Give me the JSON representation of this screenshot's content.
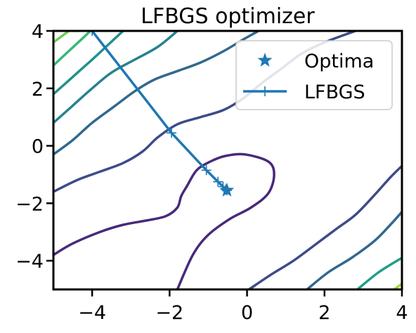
{
  "chart_data": {
    "type": "line",
    "title": "LFBGS optimizer",
    "xlabel": "",
    "ylabel": "",
    "xlim": [
      -5,
      4
    ],
    "ylim": [
      -5,
      4
    ],
    "xticks": [
      -4,
      -2,
      0,
      2,
      4
    ],
    "yticks": [
      -4,
      -2,
      0,
      2,
      4
    ],
    "xtick_labels": [
      "−4",
      "−2",
      "0",
      "2",
      "4"
    ],
    "ytick_labels": [
      "−4",
      "−2",
      "0",
      "2",
      "4"
    ],
    "grid": false,
    "legend": {
      "placement": "top-right",
      "entries": [
        {
          "label": "Optima",
          "marker": "star",
          "color": "#1f77b4"
        },
        {
          "label": "LFBGS",
          "marker": "plus-line",
          "color": "#1f77b4"
        }
      ]
    },
    "series": [
      {
        "name": "LFBGS",
        "color": "#1f77b4",
        "points": [
          [
            -4.0,
            4.0
          ],
          [
            -1.95,
            0.45
          ],
          [
            -1.05,
            -0.85
          ],
          [
            -0.75,
            -1.25
          ],
          [
            -0.62,
            -1.42
          ],
          [
            -0.55,
            -1.52
          ],
          [
            -0.52,
            -1.55
          ]
        ]
      }
    ],
    "optima": {
      "name": "Optima",
      "x": -0.52,
      "y": -1.55,
      "marker": "star",
      "color": "#1f77b4"
    },
    "contours": [
      {
        "color": "#472a7a",
        "points": [
          [
            -5.0,
            -3.8
          ],
          [
            -4.5,
            -3.4
          ],
          [
            -3.8,
            -3.0
          ],
          [
            -3.2,
            -2.75
          ],
          [
            -2.6,
            -2.6
          ],
          [
            -2.1,
            -2.45
          ],
          [
            -1.8,
            -2.15
          ],
          [
            -1.7,
            -1.75
          ],
          [
            -1.55,
            -1.4
          ],
          [
            -1.3,
            -0.85
          ],
          [
            -0.95,
            -0.55
          ],
          [
            -0.55,
            -0.35
          ],
          [
            -0.05,
            -0.3
          ],
          [
            0.55,
            -0.55
          ],
          [
            0.7,
            -1.0
          ],
          [
            0.55,
            -1.65
          ],
          [
            0.1,
            -2.15
          ],
          [
            -0.45,
            -2.55
          ],
          [
            -1.0,
            -3.1
          ],
          [
            -1.4,
            -3.8
          ],
          [
            -1.8,
            -5.0
          ]
        ]
      },
      {
        "color": "#3e4a89",
        "points": [
          [
            -5.0,
            -1.6
          ],
          [
            -4.4,
            -1.2
          ],
          [
            -3.8,
            -0.9
          ],
          [
            -3.2,
            -0.6
          ],
          [
            -2.7,
            -0.2
          ],
          [
            -2.3,
            0.3
          ],
          [
            -1.8,
            0.75
          ],
          [
            -1.2,
            1.0
          ],
          [
            -0.6,
            1.25
          ],
          [
            -0.1,
            1.65
          ],
          [
            0.4,
            2.2
          ],
          [
            0.9,
            2.7
          ],
          [
            1.4,
            3.2
          ],
          [
            2.0,
            3.6
          ],
          [
            2.8,
            4.0
          ]
        ]
      },
      {
        "color": "#3e4a89",
        "points": [
          [
            0.05,
            -5.0
          ],
          [
            0.6,
            -4.5
          ],
          [
            1.2,
            -4.0
          ],
          [
            1.8,
            -3.4
          ],
          [
            2.3,
            -2.9
          ],
          [
            2.8,
            -2.4
          ],
          [
            3.3,
            -1.7
          ],
          [
            3.7,
            -1.1
          ],
          [
            4.0,
            -0.7
          ]
        ]
      },
      {
        "color": "#31688e",
        "points": [
          [
            -5.0,
            -0.3
          ],
          [
            -4.5,
            0.2
          ],
          [
            -4.0,
            0.8
          ],
          [
            -3.4,
            1.4
          ],
          [
            -2.9,
            1.9
          ],
          [
            -2.4,
            2.3
          ],
          [
            -1.8,
            2.6
          ],
          [
            -1.2,
            2.9
          ],
          [
            -0.6,
            3.3
          ],
          [
            -0.1,
            3.7
          ],
          [
            0.3,
            4.0
          ]
        ]
      },
      {
        "color": "#31688e",
        "points": [
          [
            1.55,
            -5.0
          ],
          [
            2.1,
            -4.4
          ],
          [
            2.7,
            -3.9
          ],
          [
            3.3,
            -3.3
          ],
          [
            3.7,
            -2.75
          ],
          [
            4.0,
            -2.3
          ]
        ]
      },
      {
        "color": "#26828e",
        "points": [
          [
            -5.0,
            0.8
          ],
          [
            -4.5,
            1.4
          ],
          [
            -4.0,
            2.0
          ],
          [
            -3.5,
            2.55
          ],
          [
            -2.9,
            3.0
          ],
          [
            -2.3,
            3.45
          ],
          [
            -1.8,
            4.0
          ]
        ]
      },
      {
        "color": "#21918c",
        "points": [
          [
            -5.0,
            1.8
          ],
          [
            -4.5,
            2.4
          ],
          [
            -4.0,
            3.0
          ],
          [
            -3.6,
            3.5
          ],
          [
            -3.2,
            4.0
          ]
        ]
      },
      {
        "color": "#1f9e89",
        "points": [
          [
            2.85,
            -5.0
          ],
          [
            3.4,
            -4.4
          ],
          [
            4.0,
            -3.9
          ]
        ]
      },
      {
        "color": "#35b779",
        "points": [
          [
            -5.0,
            2.8
          ],
          [
            -4.6,
            3.3
          ],
          [
            -4.2,
            3.8
          ],
          [
            -4.05,
            4.0
          ]
        ]
      },
      {
        "color": "#6ece58",
        "points": [
          [
            -5.0,
            3.6
          ],
          [
            -4.8,
            3.8
          ],
          [
            -4.6,
            4.0
          ]
        ]
      },
      {
        "color": "#a2da37",
        "points": [
          [
            3.8,
            -5.0
          ],
          [
            4.0,
            -4.8
          ]
        ]
      },
      {
        "color": "#b5de2b",
        "points": [
          [
            -4.5,
            4.0
          ],
          [
            -4.35,
            4.0
          ]
        ]
      }
    ]
  }
}
